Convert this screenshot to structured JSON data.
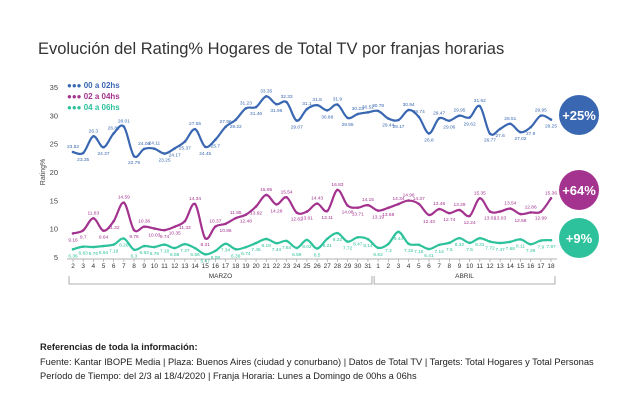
{
  "title": "Evolución del Rating% Hogares de Total TV por franjas horarias",
  "badges": [
    "+25%",
    "+64%",
    "+9%"
  ],
  "footer": {
    "ref": "Referencias de toda la información:",
    "line1": "Fuente: Kantar IBOPE Media  |  Plaza: Buenos Aires (ciudad y conurbano)  |  Datos de Total TV  |  Targets: Total Hogares y Total Personas",
    "line2": "Período de Tiempo: del 2/3 al 18/4/2020  |  Franja Horaria: Lunes a Domingo de 00hs a 06hs"
  },
  "colors": {
    "s1": "#3a67b1",
    "s2": "#a3338f",
    "s3": "#2dc29b",
    "axis": "#888888"
  },
  "chart_data": {
    "type": "line",
    "ylabel": "Rating%",
    "ylim": [
      5,
      35
    ],
    "yticks": [
      5,
      10,
      15,
      20,
      25,
      30,
      35
    ],
    "x": [
      "2",
      "3",
      "4",
      "5",
      "6",
      "7",
      "8",
      "9",
      "10",
      "11",
      "12",
      "13",
      "14",
      "15",
      "16",
      "17",
      "18",
      "19",
      "20",
      "21",
      "22",
      "23",
      "24",
      "25",
      "26",
      "27",
      "28",
      "29",
      "30",
      "31",
      "1",
      "2",
      "3",
      "4",
      "5",
      "6",
      "7",
      "8",
      "9",
      "10",
      "11",
      "12",
      "13",
      "14",
      "15",
      "16",
      "17",
      "18"
    ],
    "month_labels": [
      {
        "label": "MARZO",
        "start": 0,
        "end": 29
      },
      {
        "label": "ABRIL",
        "start": 30,
        "end": 47
      }
    ],
    "series": [
      {
        "name": "00 a 02hs",
        "label_pos": "alt",
        "values": [
          23.52,
          23.35,
          26.3,
          24.37,
          26.82,
          28.01,
          22.79,
          24.08,
          24.11,
          23.25,
          24.17,
          25.37,
          27.55,
          24.45,
          25.7,
          27.96,
          29.22,
          31.23,
          31.46,
          33.35,
          31.96,
          32.33,
          29.07,
          31.1,
          31.8,
          30.88,
          31.9,
          29.55,
          30.23,
          30.52,
          30.78,
          29.44,
          29.17,
          30.94,
          29.74,
          26.8,
          29.47,
          29.06,
          29.95,
          29.62,
          31.62,
          26.77,
          27.6,
          28.51,
          27.02,
          27.9,
          29.95,
          29.25
        ]
      },
      {
        "name": "02 a 04hs",
        "label_pos": "alt",
        "values": [
          9.16,
          9.7,
          11.83,
          9.64,
          11.32,
          14.59,
          9.76,
          10.36,
          10.03,
          9.74,
          10.35,
          11.33,
          14.34,
          8.31,
          10.37,
          10.86,
          11.85,
          12.48,
          13.92,
          15.95,
          14.28,
          15.54,
          12.82,
          13.01,
          14.43,
          13.11,
          16.83,
          14.08,
          13.71,
          14.15,
          13.19,
          13.68,
          14.34,
          14.96,
          14.37,
          12.43,
          13.46,
          12.74,
          13.29,
          12.24,
          15.35,
          13.01,
          13.03,
          13.54,
          12.58,
          12.86,
          12.99,
          15.36
        ]
      },
      {
        "name": "04 a 06hs",
        "label_pos": "below",
        "values": [
          6.36,
          6.83,
          6.76,
          6.94,
          7.19,
          8.26,
          6.3,
          6.93,
          6.76,
          7.18,
          6.58,
          7.27,
          6.56,
          5.47,
          6.08,
          7.34,
          6.36,
          6.74,
          7.46,
          8.18,
          7.44,
          7.84,
          6.59,
          8.02,
          6.5,
          8.21,
          9.22,
          7.72,
          8.47,
          8.14,
          6.62,
          7.3,
          9.44,
          7.32,
          7.15,
          6.41,
          7.14,
          7.5,
          8.32,
          7.5,
          8.31,
          7.72,
          7.47,
          7.68,
          8.11,
          7.26,
          7.9,
          7.97
        ]
      }
    ]
  }
}
